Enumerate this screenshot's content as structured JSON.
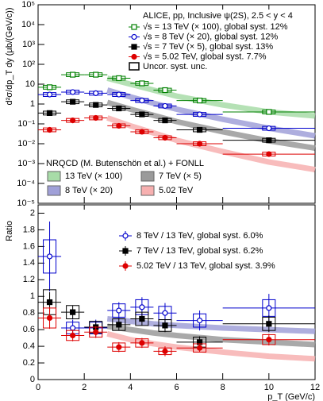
{
  "chart_data": [
    {
      "type": "scatter",
      "ylog": true,
      "ylim": [
        1e-05,
        100000
      ],
      "xlim": [
        0,
        12
      ],
      "yticks": [
        {
          "value": 1e-05,
          "label": "10⁻⁵"
        },
        {
          "value": 0.0001,
          "label": "10⁻⁴"
        },
        {
          "value": 0.001,
          "label": "10⁻³"
        },
        {
          "value": 0.01,
          "label": "10⁻²"
        },
        {
          "value": 0.1,
          "label": "10⁻¹"
        },
        1,
        10,
        {
          "value": 100,
          "label": "10²"
        },
        {
          "value": 1000,
          "label": "10³"
        },
        {
          "value": 10000,
          "label": "10⁴"
        },
        {
          "value": 100000,
          "label": "10⁵"
        }
      ],
      "xticks": [
        0,
        2,
        4,
        6,
        8,
        10,
        12
      ],
      "y_label": "d²σ/dp_T dy (μb/(GeV/c))",
      "legend_title": "ALICE, pp, Inclusive ψ(2S), 2.5 < y < 4",
      "syst_label": "Uncor. syst. unc.",
      "series": [
        {
          "name": "√s = 13 TeV (× 100), global syst. 12%",
          "color": "#008000",
          "marker": "open-square",
          "x": [
            0.5,
            1.5,
            2.5,
            3.5,
            4.5,
            5.5,
            7,
            10
          ],
          "xerr": [
            0.5,
            0.5,
            0.5,
            0.5,
            0.5,
            0.5,
            1,
            2
          ],
          "values": [
            7,
            30,
            30,
            20,
            11,
            5,
            1.5,
            0.4
          ]
        },
        {
          "name": "√s = 8 TeV (× 20), global syst. 12%",
          "color": "#0000cc",
          "marker": "open-circle",
          "x": [
            0.5,
            1.5,
            2.5,
            3.5,
            4.5,
            5.5,
            7,
            10
          ],
          "xerr": [
            0.5,
            0.5,
            0.5,
            0.5,
            0.5,
            0.5,
            1,
            2
          ],
          "values": [
            3,
            4,
            3.5,
            3,
            1.5,
            0.8,
            0.3,
            0.06
          ]
        },
        {
          "name": "√s = 7 TeV (× 5), global syst. 13%",
          "color": "#000000",
          "marker": "filled-square",
          "x": [
            0.5,
            1.5,
            2.5,
            3.5,
            4.5,
            5.5,
            7,
            10
          ],
          "xerr": [
            0.5,
            0.5,
            0.5,
            0.5,
            0.5,
            0.5,
            1,
            2
          ],
          "values": [
            0.35,
            1.3,
            0.9,
            0.6,
            0.3,
            0.15,
            0.05,
            0.015
          ]
        },
        {
          "name": "√s = 5.02 TeV, global syst. 7.7%",
          "color": "#dd0000",
          "marker": "filled-circle",
          "x": [
            0.5,
            1.5,
            2.5,
            3.5,
            4.5,
            5.5,
            7,
            10
          ],
          "xerr": [
            0.5,
            0.5,
            0.5,
            0.5,
            0.5,
            0.5,
            1,
            2
          ],
          "values": [
            0.05,
            0.15,
            0.2,
            0.08,
            0.04,
            0.02,
            0.01,
            0.003
          ]
        }
      ],
      "theory_title": "NRQCD (M. Butenschön et al.) + FONLL",
      "theory": [
        {
          "name": "13 TeV (× 100)",
          "color": "#a8dca8",
          "x": [
            3,
            4,
            5,
            6,
            8,
            10,
            12
          ],
          "values": [
            20,
            10,
            5,
            2.5,
            0.9,
            0.4,
            0.25
          ]
        },
        {
          "name": "8 TeV (× 20)",
          "color": "#a0a0d8",
          "x": [
            3,
            4,
            5,
            6,
            8,
            10,
            12
          ],
          "values": [
            5,
            2.3,
            1.1,
            0.55,
            0.17,
            0.06,
            0.025
          ]
        },
        {
          "name": "7 TeV (× 5)",
          "color": "#9a9a9a",
          "x": [
            3,
            4,
            5,
            6,
            8,
            10,
            12
          ],
          "values": [
            1.2,
            0.55,
            0.27,
            0.13,
            0.04,
            0.014,
            0.006
          ]
        },
        {
          "name": "5.02 TeV",
          "color": "#f7b0b0",
          "x": [
            3,
            4,
            5,
            6,
            8,
            10,
            12
          ],
          "values": [
            0.2,
            0.08,
            0.035,
            0.015,
            0.004,
            0.0012,
            0.0005
          ]
        }
      ]
    },
    {
      "type": "scatter",
      "ylim": [
        0,
        2.1
      ],
      "xlim": [
        0,
        12
      ],
      "yticks": [
        0,
        0.2,
        0.4,
        0.6,
        0.8,
        1,
        1.2,
        1.4,
        1.6,
        1.8,
        2
      ],
      "xticks": [
        0,
        2,
        4,
        6,
        8,
        10,
        12
      ],
      "y_label": "Ratio",
      "x_label": "p_T (GeV/c)",
      "series": [
        {
          "name": "8 TeV / 13 TeV, global syst. 6.0%",
          "color": "#0000cc",
          "marker": "open-circle",
          "x": [
            0.5,
            1.5,
            2.5,
            3.5,
            4.5,
            5.5,
            7,
            10
          ],
          "xerr": [
            0.5,
            0.5,
            0.5,
            0.5,
            0.5,
            0.5,
            1,
            2
          ],
          "values": [
            1.48,
            0.62,
            0.62,
            0.83,
            0.87,
            0.8,
            0.71,
            0.86
          ],
          "err": [
            0.42,
            0.1,
            0.1,
            0.1,
            0.12,
            0.12,
            0.12,
            0.17
          ],
          "syst": [
            0.2,
            0.07,
            0.07,
            0.08,
            0.09,
            0.08,
            0.08,
            0.1
          ]
        },
        {
          "name": "7 TeV / 13 TeV, global syst. 6.2%",
          "color": "#000000",
          "marker": "filled-square",
          "x": [
            0.5,
            1.5,
            2.5,
            3.5,
            4.5,
            5.5,
            7,
            10
          ],
          "xerr": [
            0.5,
            0.5,
            0.5,
            0.5,
            0.5,
            0.5,
            1,
            2
          ],
          "values": [
            0.93,
            0.81,
            0.63,
            0.66,
            0.73,
            0.65,
            0.45,
            0.67
          ],
          "err": [
            0.12,
            0.08,
            0.07,
            0.07,
            0.08,
            0.08,
            0.07,
            0.1
          ],
          "syst": [
            0.15,
            0.08,
            0.07,
            0.07,
            0.08,
            0.07,
            0.06,
            0.08
          ]
        },
        {
          "name": "5.02 TeV / 13 TeV, global syst. 3.9%",
          "color": "#dd0000",
          "marker": "filled-circle",
          "x": [
            0.5,
            1.5,
            2.5,
            3.5,
            4.5,
            5.5,
            7,
            10
          ],
          "xerr": [
            0.5,
            0.5,
            0.5,
            0.5,
            0.5,
            0.5,
            1,
            2
          ],
          "values": [
            0.74,
            0.53,
            0.57,
            0.39,
            0.44,
            0.34,
            0.38,
            0.48
          ],
          "err": [
            0.13,
            0.07,
            0.07,
            0.06,
            0.06,
            0.06,
            0.05,
            0.07
          ],
          "syst": [
            0.12,
            0.06,
            0.06,
            0.05,
            0.05,
            0.04,
            0.05,
            0.06
          ]
        }
      ],
      "theory": [
        {
          "color": "#a0a0d8",
          "x": [
            3,
            4,
            5,
            6,
            8,
            10,
            12
          ],
          "values": [
            0.73,
            0.7,
            0.67,
            0.65,
            0.62,
            0.6,
            0.58
          ]
        },
        {
          "color": "#9a9a9a",
          "x": [
            3,
            4,
            5,
            6,
            8,
            10,
            12
          ],
          "values": [
            0.64,
            0.6,
            0.56,
            0.53,
            0.48,
            0.45,
            0.42
          ]
        },
        {
          "color": "#f7b0b0",
          "x": [
            3,
            4,
            5,
            6,
            8,
            10,
            12
          ],
          "values": [
            0.55,
            0.48,
            0.43,
            0.39,
            0.33,
            0.28,
            0.25
          ]
        }
      ]
    }
  ]
}
